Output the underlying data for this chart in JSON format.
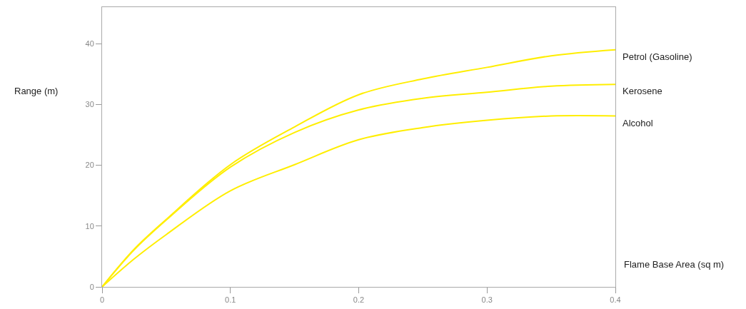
{
  "chart_data": {
    "type": "line",
    "xlabel": "Flame Base Area (sq m)",
    "ylabel": "Range (m)",
    "x": [
      0,
      0.025,
      0.05,
      0.1,
      0.15,
      0.2,
      0.25,
      0.3,
      0.35,
      0.4
    ],
    "series": [
      {
        "name": "Petrol (Gasoline)",
        "color": "#ffee00",
        "values": [
          0,
          6.2,
          11.1,
          20.1,
          26.3,
          31.6,
          34.2,
          36.1,
          38,
          39
        ]
      },
      {
        "name": "Kerosene",
        "color": "#ffee00",
        "values": [
          0,
          6.1,
          11,
          19.7,
          25.4,
          29.1,
          31,
          32,
          33,
          33.3
        ]
      },
      {
        "name": "Alcohol",
        "color": "#ffee00",
        "values": [
          0,
          4.6,
          8.6,
          15.8,
          20.1,
          24.2,
          26.2,
          27.4,
          28.1,
          28.1
        ]
      }
    ],
    "xlim": [
      0,
      0.4
    ],
    "xticks": [
      0,
      0.1,
      0.2,
      0.3,
      0.4
    ],
    "ylim": [
      0,
      46
    ],
    "yticks": [
      0,
      10,
      20,
      30,
      40
    ],
    "grid": false,
    "legend": false,
    "marker": "none",
    "line_style": "solid"
  }
}
